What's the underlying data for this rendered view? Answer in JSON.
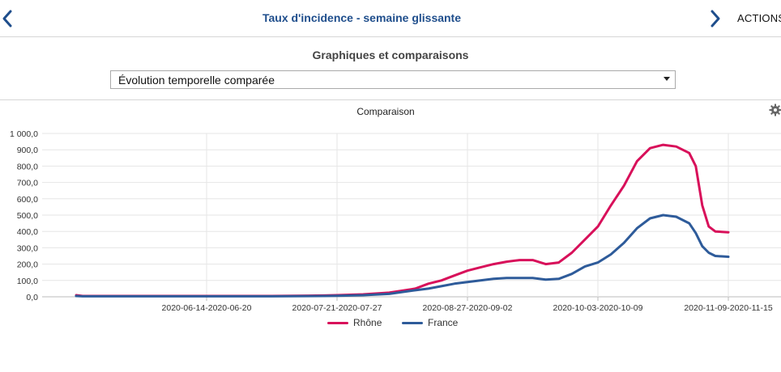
{
  "header": {
    "title": "Taux d'incidence - semaine glissante",
    "actions_label": "ACTIONS",
    "back_icon": "chevron-left-icon",
    "forward_icon": "chevron-right-icon",
    "accent_color": "#1f4e8c"
  },
  "panel": {
    "title": "Graphiques et comparaisons",
    "select": {
      "value": "Évolution temporelle comparée"
    }
  },
  "chart": {
    "settings_icon": "gear-icon"
  },
  "chart_data": {
    "type": "line",
    "title": "Comparaison",
    "xlabel": "",
    "ylabel": "",
    "ylim": [
      0,
      1000
    ],
    "y_ticks": [
      "0,0",
      "100,0",
      "200,0",
      "300,0",
      "400,0",
      "500,0",
      "600,0",
      "700,0",
      "800,0",
      "900,0",
      "1 000,0"
    ],
    "y_tick_values": [
      0,
      100,
      200,
      300,
      400,
      500,
      600,
      700,
      800,
      900,
      1000
    ],
    "x_tick_labels": [
      "2020-06-14-2020-06-20",
      "2020-07-21-2020-07-27",
      "2020-08-27-2020-09-02",
      "2020-10-03-2020-10-09",
      "2020-11-09-2020-11-15"
    ],
    "x_tick_positions": [
      1.0,
      2.0,
      3.0,
      4.0,
      5.0
    ],
    "xlim": [
      0,
      5
    ],
    "grid": true,
    "legend_position": "bottom-center",
    "series": [
      {
        "name": "Rhône",
        "color": "#d8105a",
        "x": [
          0.0,
          0.05,
          0.5,
          1.0,
          1.5,
          1.9,
          2.0,
          2.2,
          2.4,
          2.6,
          2.7,
          2.8,
          2.9,
          3.0,
          3.1,
          3.2,
          3.3,
          3.4,
          3.5,
          3.6,
          3.7,
          3.8,
          3.9,
          4.0,
          4.1,
          4.2,
          4.3,
          4.4,
          4.5,
          4.6,
          4.7,
          4.75,
          4.8,
          4.85,
          4.9,
          5.0
        ],
        "y": [
          10,
          5,
          5,
          5,
          5,
          8,
          10,
          15,
          25,
          50,
          80,
          100,
          130,
          160,
          180,
          200,
          215,
          225,
          225,
          200,
          210,
          270,
          350,
          430,
          560,
          680,
          830,
          910,
          930,
          920,
          880,
          800,
          560,
          430,
          400,
          395
        ]
      },
      {
        "name": "France",
        "color": "#2e5b9a",
        "x": [
          0.0,
          0.05,
          0.5,
          1.0,
          1.5,
          1.9,
          2.0,
          2.2,
          2.4,
          2.6,
          2.7,
          2.8,
          2.9,
          3.0,
          3.1,
          3.2,
          3.3,
          3.4,
          3.5,
          3.6,
          3.7,
          3.8,
          3.9,
          4.0,
          4.1,
          4.2,
          4.3,
          4.4,
          4.5,
          4.6,
          4.7,
          4.75,
          4.8,
          4.85,
          4.9,
          5.0
        ],
        "y": [
          5,
          3,
          3,
          3,
          3,
          5,
          6,
          10,
          18,
          40,
          50,
          65,
          80,
          90,
          100,
          110,
          115,
          115,
          115,
          105,
          110,
          140,
          185,
          210,
          260,
          330,
          420,
          480,
          500,
          490,
          450,
          390,
          310,
          270,
          250,
          245
        ]
      }
    ]
  }
}
